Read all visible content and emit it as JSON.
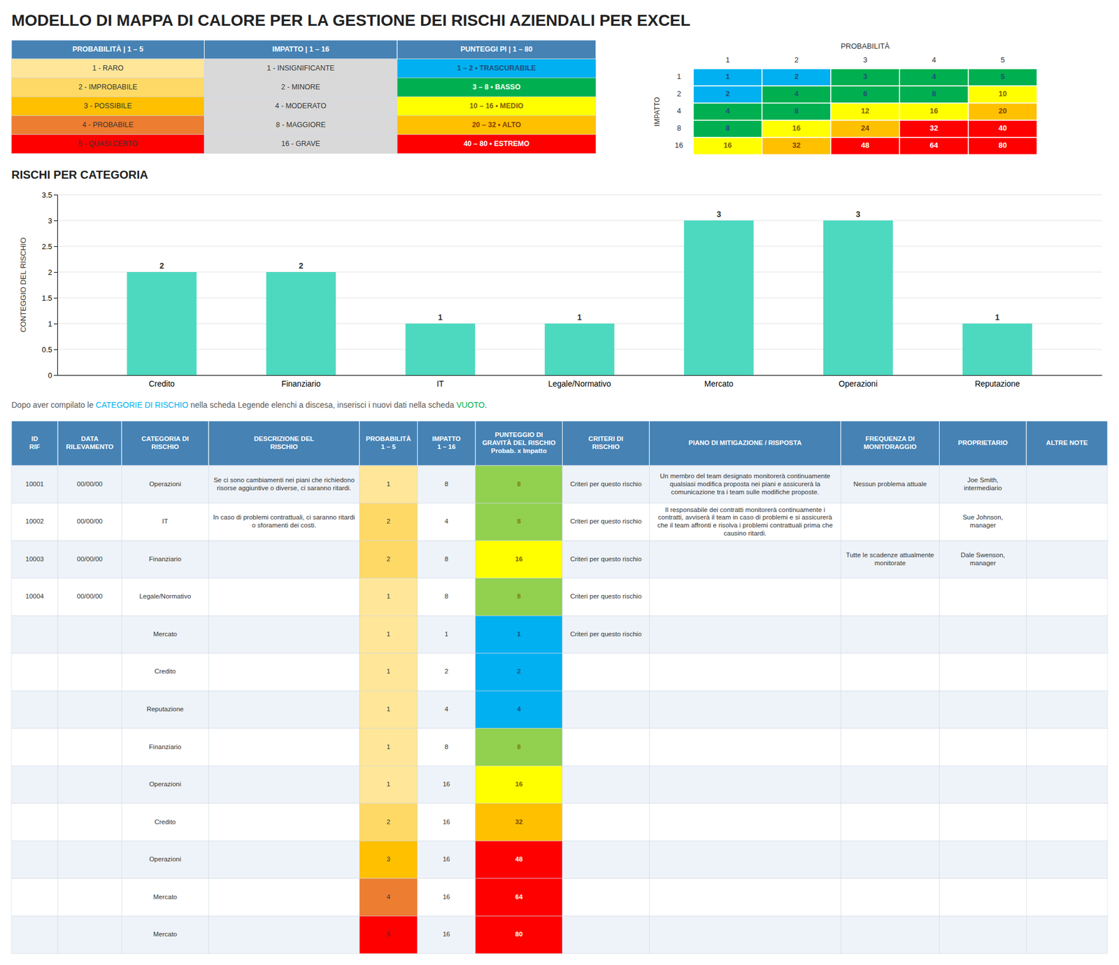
{
  "chart_data": [
    {
      "type": "table",
      "title": "MODELLO DI MAPPA DI CALORE PER LA GESTIONE DEI RISCHI AZIENDALI PER EXCEL",
      "columns": [
        "PROBABILITÀ | 1 – 5",
        "IMPATTO | 1 – 16",
        "PUNTEGGI PI | 1 – 80"
      ],
      "rows": [
        [
          "1 - RARO",
          "1 - INSIGNIFICANTE",
          "1 – 2 • TRASCURABILE"
        ],
        [
          "2 - IMPROBABILE",
          "2 - MINORE",
          "3 – 8 • BASSO"
        ],
        [
          "3 - POSSIBILE",
          "4 - MODERATO",
          "10 – 16 • MEDIO"
        ],
        [
          "4 - PROBABILE",
          "8 - MAGGIORE",
          "20 – 32 • ALTO"
        ],
        [
          "5 - QUASI CERTO",
          "16 - GRAVE",
          "40 – 80 • ESTREMO"
        ]
      ],
      "cell_colors": [
        [
          "#FFE699",
          "#D9D9D9",
          "#00B0F0"
        ],
        [
          "#FFD966",
          "#D9D9D9",
          "#00B050"
        ],
        [
          "#FFC000",
          "#D9D9D9",
          "#FFFF00"
        ],
        [
          "#ED7D31",
          "#D9D9D9",
          "#FFC000"
        ],
        [
          "#FF0000",
          "#D9D9D9",
          "#FF0000"
        ]
      ],
      "text_colors": [
        [
          null,
          null,
          "#1F4E79"
        ],
        [
          null,
          null,
          "#FFFFFF"
        ],
        [
          null,
          null,
          "#7F6000"
        ],
        [
          null,
          null,
          "#7F3F00"
        ],
        [
          null,
          null,
          "#FFFFFF"
        ]
      ]
    },
    {
      "type": "heatmap",
      "xlabel": "PROBABILITÀ",
      "ylabel": "IMPATTO",
      "x": [
        "1",
        "2",
        "3",
        "4",
        "5"
      ],
      "y": [
        "1",
        "2",
        "4",
        "8",
        "16"
      ],
      "values": [
        [
          1,
          2,
          3,
          4,
          5
        ],
        [
          2,
          4,
          6,
          8,
          10
        ],
        [
          4,
          8,
          12,
          16,
          20
        ],
        [
          8,
          16,
          24,
          32,
          40
        ],
        [
          16,
          32,
          48,
          64,
          80
        ]
      ],
      "colors": [
        [
          "#00B0F0",
          "#00B0F0",
          "#00B050",
          "#00B050",
          "#00B050"
        ],
        [
          "#00B0F0",
          "#00B050",
          "#00B050",
          "#00B050",
          "#FFFF00"
        ],
        [
          "#00B050",
          "#00B050",
          "#FFFF00",
          "#FFFF00",
          "#FFC000"
        ],
        [
          "#00B050",
          "#FFFF00",
          "#FFC000",
          "#FF0000",
          "#FF0000"
        ],
        [
          "#FFFF00",
          "#FFC000",
          "#FF0000",
          "#FF0000",
          "#FF0000"
        ]
      ],
      "text_colors": [
        [
          "#1F4E79",
          "#1F4E79",
          "#1F4E79",
          "#1F4E79",
          "#1F4E79"
        ],
        [
          "#1F4E79",
          "#1F4E79",
          "#1F4E79",
          "#1F4E79",
          "#7F6000"
        ],
        [
          "#1F4E79",
          "#1F4E79",
          "#7F6000",
          "#7F6000",
          "#7F3F00"
        ],
        [
          "#1F4E79",
          "#7F6000",
          "#7F3F00",
          "#FFFFFF",
          "#FFFFFF"
        ],
        [
          "#7F6000",
          "#7F3F00",
          "#FFFFFF",
          "#FFFFFF",
          "#FFFFFF"
        ]
      ],
      "data_labels": true
    },
    {
      "type": "bar",
      "title": "RISCHI PER CATEGORIA",
      "categories": [
        "Credito",
        "Finanziario",
        "IT",
        "Legale/Normativo",
        "Mercato",
        "Operazioni",
        "Reputazione"
      ],
      "values": [
        2,
        2,
        1,
        1,
        3,
        3,
        1
      ],
      "color": "#4DD9C0",
      "ylabel": "CONTEGGIO DEL RISCHIO",
      "ylim": [
        0,
        3.5
      ],
      "yticks": [
        0,
        0.5,
        1,
        1.5,
        2,
        2.5,
        3,
        3.5
      ],
      "grid": true,
      "data_labels": true
    },
    {
      "type": "text",
      "annotations": [
        {
          "text": "Dopo aver compilato le ",
          "color": "#595959"
        },
        {
          "text": "CATEGORIE DI RISCHIO",
          "color": "#00B0F0"
        },
        {
          "text": " nella scheda Legende elenchi a discesa, inserisci i nuovi dati nella scheda ",
          "color": "#595959"
        },
        {
          "text": "VUOTO",
          "color": "#00B050"
        },
        {
          "text": ".",
          "color": "#595959"
        }
      ]
    },
    {
      "type": "table",
      "columns": [
        "ID\nRIF",
        "DATA\nRILEVAMENTO",
        "CATEGORIA DI\nRISCHIO",
        "DESCRIZIONE DEL\nRISCHIO",
        "PROBABILITÀ\n1 – 5",
        "IMPATTO\n1 – 16",
        "PUNTEGGIO DI\nGRAVITÀ DEL RISCHIO\nProbab. x Impatto",
        "CRITERI DI\nRISCHIO",
        "PIANO DI MITIGAZIONE / RISPOSTA",
        "FREQUENZA DI\nMONITORAGGIO",
        "PROPRIETARIO",
        "ALTRE NOTE"
      ],
      "rows": [
        [
          "10001",
          "00/00/00",
          "Operazioni",
          "Se ci sono cambiamenti nei piani che richiedono risorse aggiuntive o diverse, ci saranno ritardi.",
          "1",
          "8",
          "8",
          "Criteri per questo rischio",
          "Un membro del team designato monitorerà continuamente qualsiasi modifica proposta nei piani e assicurerà la comunicazione tra i team sulle modifiche proposte.",
          "Nessun problema attuale",
          "Joe Smith,\nintermediario",
          null
        ],
        [
          "10002",
          "00/00/00",
          "IT",
          "In caso di problemi contrattuali, ci saranno ritardi o sforamenti dei costi.",
          "2",
          "4",
          "8",
          "Criteri per questo rischio",
          "Il responsabile dei contratti monitorerà continuamente i contratti, avviserà il team in caso di problemi e si assicurerà che il team affronti e risolva i problemi contrattuali prima che causino ritardi.",
          null,
          "Sue Johnson,\nmanager",
          null
        ],
        [
          "10003",
          "00/00/00",
          "Finanziario",
          null,
          "2",
          "8",
          "16",
          "Criteri per questo rischio",
          null,
          "Tutte le scadenze attualmente monitorate",
          "Dale Swenson,\nmanager",
          null
        ],
        [
          "10004",
          "00/00/00",
          "Legale/Normativo",
          null,
          "1",
          "8",
          "8",
          "Criteri per questo rischio",
          null,
          null,
          null,
          null
        ],
        [
          null,
          null,
          "Mercato",
          null,
          "1",
          "1",
          "1",
          "Criteri per questo rischio",
          null,
          null,
          null,
          null
        ],
        [
          null,
          null,
          "Credito",
          null,
          "1",
          "2",
          "2",
          null,
          null,
          null,
          null,
          null
        ],
        [
          null,
          null,
          "Reputazione",
          null,
          "1",
          "4",
          "4",
          null,
          null,
          null,
          null,
          null
        ],
        [
          null,
          null,
          "Finanziario",
          null,
          "1",
          "8",
          "8",
          null,
          null,
          null,
          null,
          null
        ],
        [
          null,
          null,
          "Operazioni",
          null,
          "1",
          "16",
          "16",
          null,
          null,
          null,
          null,
          null
        ],
        [
          null,
          null,
          "Credito",
          null,
          "2",
          "16",
          "32",
          null,
          null,
          null,
          null,
          null
        ],
        [
          null,
          null,
          "Operazioni",
          null,
          "3",
          "16",
          "48",
          null,
          null,
          null,
          null,
          null
        ],
        [
          null,
          null,
          "Mercato",
          null,
          "4",
          "16",
          "64",
          null,
          null,
          null,
          null,
          null
        ],
        [
          null,
          null,
          "Mercato",
          null,
          "5",
          "16",
          "80",
          null,
          null,
          null,
          null,
          null
        ]
      ],
      "cell_colors": [
        [
          null,
          null,
          null,
          null,
          "#FFE699",
          null,
          "#92D050",
          null,
          null,
          null,
          null,
          null
        ],
        [
          null,
          null,
          null,
          null,
          "#FFD966",
          null,
          "#92D050",
          null,
          null,
          null,
          null,
          null
        ],
        [
          null,
          null,
          null,
          null,
          "#FFD966",
          null,
          "#FFFF00",
          null,
          null,
          null,
          null,
          null
        ],
        [
          null,
          null,
          null,
          null,
          "#FFE699",
          null,
          "#92D050",
          null,
          null,
          null,
          null,
          null
        ],
        [
          null,
          null,
          null,
          null,
          "#FFE699",
          null,
          "#00B0F0",
          null,
          null,
          null,
          null,
          null
        ],
        [
          null,
          null,
          null,
          null,
          "#FFE699",
          null,
          "#00B0F0",
          null,
          null,
          null,
          null,
          null
        ],
        [
          null,
          null,
          null,
          null,
          "#FFE699",
          null,
          "#00B0F0",
          null,
          null,
          null,
          null,
          null
        ],
        [
          null,
          null,
          null,
          null,
          "#FFE699",
          null,
          "#92D050",
          null,
          null,
          null,
          null,
          null
        ],
        [
          null,
          null,
          null,
          null,
          "#FFE699",
          null,
          "#FFFF00",
          null,
          null,
          null,
          null,
          null
        ],
        [
          null,
          null,
          null,
          null,
          "#FFD966",
          null,
          "#FFC000",
          null,
          null,
          null,
          null,
          null
        ],
        [
          null,
          null,
          null,
          null,
          "#FFC000",
          null,
          "#FF0000",
          null,
          null,
          null,
          null,
          null
        ],
        [
          null,
          null,
          null,
          null,
          "#ED7D31",
          null,
          "#FF0000",
          null,
          null,
          null,
          null,
          null
        ],
        [
          null,
          null,
          null,
          null,
          "#FF0000",
          null,
          "#FF0000",
          null,
          null,
          null,
          null,
          null
        ]
      ],
      "text_colors": [
        [
          null,
          null,
          null,
          null,
          null,
          null,
          "#7F7F00",
          null,
          null,
          null,
          null,
          null
        ],
        [
          null,
          null,
          null,
          null,
          null,
          null,
          "#7F7F00",
          null,
          null,
          null,
          null,
          null
        ],
        [
          null,
          null,
          null,
          null,
          null,
          null,
          "#7F6000",
          null,
          null,
          null,
          null,
          null
        ],
        [
          null,
          null,
          null,
          null,
          null,
          null,
          "#7F7F00",
          null,
          null,
          null,
          null,
          null
        ],
        [
          null,
          null,
          null,
          null,
          null,
          null,
          "#1F4E79",
          null,
          null,
          null,
          null,
          null
        ],
        [
          null,
          null,
          null,
          null,
          null,
          null,
          "#1F4E79",
          null,
          null,
          null,
          null,
          null
        ],
        [
          null,
          null,
          null,
          null,
          null,
          null,
          "#1F4E79",
          null,
          null,
          null,
          null,
          null
        ],
        [
          null,
          null,
          null,
          null,
          null,
          null,
          "#7F7F00",
          null,
          null,
          null,
          null,
          null
        ],
        [
          null,
          null,
          null,
          null,
          null,
          null,
          "#7F6000",
          null,
          null,
          null,
          null,
          null
        ],
        [
          null,
          null,
          null,
          null,
          null,
          null,
          "#7F3F00",
          null,
          null,
          null,
          null,
          null
        ],
        [
          null,
          null,
          null,
          null,
          null,
          null,
          "#FFFFFF",
          null,
          null,
          null,
          null,
          null
        ],
        [
          null,
          null,
          null,
          null,
          null,
          null,
          "#FFFFFF",
          null,
          null,
          null,
          null,
          null
        ],
        [
          null,
          null,
          null,
          null,
          null,
          null,
          "#FFFFFF",
          null,
          null,
          null,
          null,
          null
        ]
      ]
    }
  ]
}
